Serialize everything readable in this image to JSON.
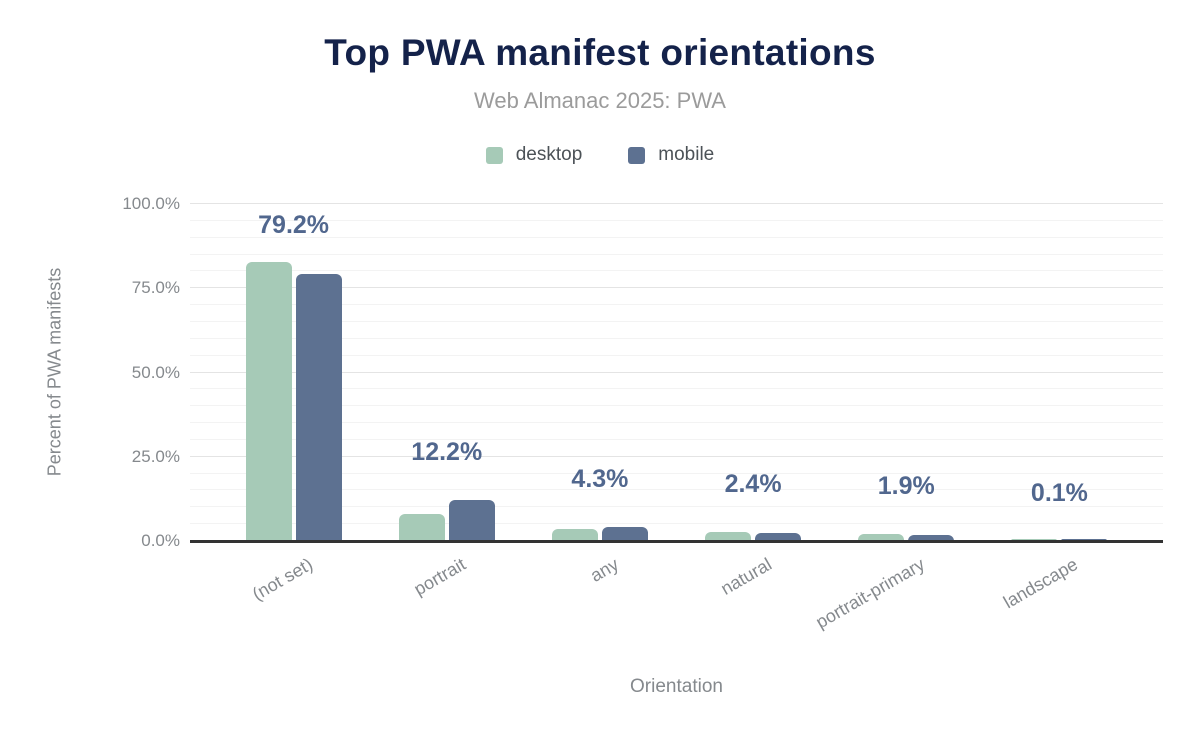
{
  "header": {
    "title": "Top PWA manifest orientations",
    "subtitle": "Web Almanac 2025: PWA"
  },
  "chart_data": {
    "type": "bar",
    "title": "Top PWA manifest orientations",
    "subtitle": "Web Almanac 2025: PWA",
    "categories": [
      "(not set)",
      "portrait",
      "any",
      "natural",
      "portrait-primary",
      "landscape"
    ],
    "series": [
      {
        "name": "desktop",
        "color": "#a6cab7",
        "values": [
          82.7,
          8.1,
          3.7,
          2.7,
          2.1,
          0.1
        ]
      },
      {
        "name": "mobile",
        "color": "#5d7191",
        "values": [
          79.2,
          12.2,
          4.3,
          2.4,
          1.9,
          0.1
        ]
      }
    ],
    "value_labels": [
      "79.2%",
      "12.2%",
      "4.3%",
      "2.4%",
      "1.9%",
      "0.1%"
    ],
    "xlabel": "Orientation",
    "ylabel": "Percent of PWA manifests",
    "yticks": [
      {
        "value": 0,
        "label": "0.0%"
      },
      {
        "value": 25,
        "label": "25.0%"
      },
      {
        "value": 50,
        "label": "50.0%"
      },
      {
        "value": 75,
        "label": "75.0%"
      },
      {
        "value": 100,
        "label": "100.0%"
      }
    ],
    "ylim": [
      0,
      100
    ],
    "grid": {
      "minor_step": 5,
      "major_step": 25
    },
    "legend_position": "top"
  },
  "colors": {
    "background": "#ffffff",
    "title": "#14224a",
    "subtitle": "#9b9b9b",
    "legend_text": "#4c5257",
    "axis_text": "#85898d",
    "value_label": "#51678e",
    "axis_line": "#333333",
    "grid_minor": "#f3f3f3",
    "grid_major": "#e4e4e4"
  }
}
